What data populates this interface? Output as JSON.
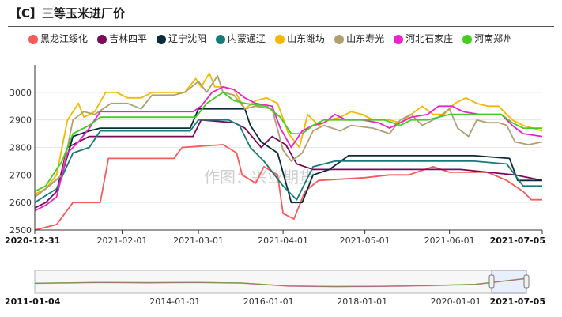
{
  "title": "【C】三等玉米进厂价",
  "watermark": "作图：兴业期货",
  "chart_data": {
    "type": "line",
    "title": "【C】三等玉米进厂价",
    "xlabel": "",
    "ylabel": "",
    "ylim": [
      2500,
      3100
    ],
    "y_ticks": [
      2500,
      2600,
      2700,
      2800,
      2900,
      3000
    ],
    "x_ticks": [
      "2020-12-31",
      "2021-02-01",
      "2021-03-01",
      "2021-04-01",
      "2021-05-01",
      "2021-06-01",
      "2021-07-05"
    ],
    "x_range": [
      "2020-12-31",
      "2021-07-05"
    ],
    "grid": "horizontal",
    "legend": "top-left",
    "series": [
      {
        "name": "黑龙江绥化",
        "color": "#f45b5b",
        "points": [
          [
            "2020-12-31",
            2500
          ],
          [
            "2021-01-08",
            2520
          ],
          [
            "2021-01-14",
            2600
          ],
          [
            "2021-01-24",
            2600
          ],
          [
            "2021-01-27",
            2760
          ],
          [
            "2021-02-20",
            2760
          ],
          [
            "2021-02-23",
            2800
          ],
          [
            "2021-03-10",
            2810
          ],
          [
            "2021-03-15",
            2780
          ],
          [
            "2021-03-17",
            2700
          ],
          [
            "2021-03-22",
            2670
          ],
          [
            "2021-03-25",
            2730
          ],
          [
            "2021-03-30",
            2700
          ],
          [
            "2021-04-01",
            2560
          ],
          [
            "2021-04-05",
            2540
          ],
          [
            "2021-04-09",
            2640
          ],
          [
            "2021-04-14",
            2680
          ],
          [
            "2021-05-01",
            2690
          ],
          [
            "2021-05-10",
            2700
          ],
          [
            "2021-05-17",
            2700
          ],
          [
            "2021-05-26",
            2730
          ],
          [
            "2021-06-01",
            2710
          ],
          [
            "2021-06-15",
            2710
          ],
          [
            "2021-06-22",
            2680
          ],
          [
            "2021-06-28",
            2640
          ],
          [
            "2021-07-01",
            2610
          ],
          [
            "2021-07-05",
            2610
          ]
        ]
      },
      {
        "name": "吉林四平",
        "color": "#7a0a5a",
        "points": [
          [
            "2020-12-31",
            2580
          ],
          [
            "2021-01-04",
            2600
          ],
          [
            "2021-01-08",
            2640
          ],
          [
            "2021-01-12",
            2800
          ],
          [
            "2021-01-16",
            2820
          ],
          [
            "2021-01-20",
            2840
          ],
          [
            "2021-02-27",
            2840
          ],
          [
            "2021-03-02",
            2900
          ],
          [
            "2021-03-14",
            2890
          ],
          [
            "2021-03-18",
            2870
          ],
          [
            "2021-03-24",
            2800
          ],
          [
            "2021-03-28",
            2840
          ],
          [
            "2021-04-02",
            2810
          ],
          [
            "2021-04-06",
            2740
          ],
          [
            "2021-04-12",
            2720
          ],
          [
            "2021-06-05",
            2720
          ],
          [
            "2021-06-25",
            2700
          ],
          [
            "2021-07-05",
            2680
          ]
        ]
      },
      {
        "name": "辽宁沈阳",
        "color": "#0b2a3a",
        "points": [
          [
            "2020-12-31",
            2620
          ],
          [
            "2021-01-04",
            2650
          ],
          [
            "2021-01-10",
            2700
          ],
          [
            "2021-01-14",
            2840
          ],
          [
            "2021-01-20",
            2860
          ],
          [
            "2021-01-24",
            2870
          ],
          [
            "2021-02-26",
            2870
          ],
          [
            "2021-03-01",
            2940
          ],
          [
            "2021-03-18",
            2940
          ],
          [
            "2021-03-20",
            2880
          ],
          [
            "2021-03-24",
            2820
          ],
          [
            "2021-03-30",
            2780
          ],
          [
            "2021-04-04",
            2600
          ],
          [
            "2021-04-08",
            2600
          ],
          [
            "2021-04-12",
            2700
          ],
          [
            "2021-04-18",
            2720
          ],
          [
            "2021-04-25",
            2770
          ],
          [
            "2021-06-10",
            2770
          ],
          [
            "2021-06-23",
            2760
          ],
          [
            "2021-06-26",
            2680
          ],
          [
            "2021-07-05",
            2680
          ]
        ]
      },
      {
        "name": "内蒙通辽",
        "color": "#167a7a",
        "points": [
          [
            "2020-12-31",
            2600
          ],
          [
            "2021-01-08",
            2650
          ],
          [
            "2021-01-14",
            2780
          ],
          [
            "2021-01-20",
            2800
          ],
          [
            "2021-01-24",
            2860
          ],
          [
            "2021-02-26",
            2860
          ],
          [
            "2021-03-01",
            2900
          ],
          [
            "2021-03-12",
            2900
          ],
          [
            "2021-03-16",
            2880
          ],
          [
            "2021-03-20",
            2800
          ],
          [
            "2021-03-25",
            2750
          ],
          [
            "2021-04-01",
            2660
          ],
          [
            "2021-04-06",
            2610
          ],
          [
            "2021-04-12",
            2730
          ],
          [
            "2021-04-20",
            2750
          ],
          [
            "2021-06-10",
            2750
          ],
          [
            "2021-06-22",
            2740
          ],
          [
            "2021-06-28",
            2660
          ],
          [
            "2021-07-05",
            2660
          ]
        ]
      },
      {
        "name": "山东潍坊",
        "color": "#f5b800",
        "points": [
          [
            "2020-12-31",
            2630
          ],
          [
            "2021-01-04",
            2650
          ],
          [
            "2021-01-08",
            2700
          ],
          [
            "2021-01-12",
            2900
          ],
          [
            "2021-01-16",
            2960
          ],
          [
            "2021-01-18",
            2910
          ],
          [
            "2021-01-22",
            2930
          ],
          [
            "2021-01-26",
            3000
          ],
          [
            "2021-01-30",
            3000
          ],
          [
            "2021-02-03",
            2980
          ],
          [
            "2021-02-08",
            2980
          ],
          [
            "2021-02-12",
            3000
          ],
          [
            "2021-02-20",
            3000
          ],
          [
            "2021-02-24",
            3000
          ],
          [
            "2021-02-28",
            3050
          ],
          [
            "2021-03-02",
            3020
          ],
          [
            "2021-03-05",
            3070
          ],
          [
            "2021-03-07",
            3020
          ],
          [
            "2021-03-10",
            3020
          ],
          [
            "2021-03-14",
            3010
          ],
          [
            "2021-03-18",
            2940
          ],
          [
            "2021-03-22",
            2970
          ],
          [
            "2021-03-26",
            2980
          ],
          [
            "2021-03-30",
            2960
          ],
          [
            "2021-04-03",
            2850
          ],
          [
            "2021-04-07",
            2800
          ],
          [
            "2021-04-10",
            2920
          ],
          [
            "2021-04-14",
            2880
          ],
          [
            "2021-04-18",
            2900
          ],
          [
            "2021-04-22",
            2910
          ],
          [
            "2021-04-26",
            2930
          ],
          [
            "2021-04-30",
            2920
          ],
          [
            "2021-05-04",
            2900
          ],
          [
            "2021-05-10",
            2900
          ],
          [
            "2021-05-14",
            2890
          ],
          [
            "2021-05-18",
            2920
          ],
          [
            "2021-05-22",
            2950
          ],
          [
            "2021-05-26",
            2920
          ],
          [
            "2021-05-30",
            2920
          ],
          [
            "2021-06-03",
            2960
          ],
          [
            "2021-06-07",
            2980
          ],
          [
            "2021-06-11",
            2960
          ],
          [
            "2021-06-15",
            2950
          ],
          [
            "2021-06-19",
            2950
          ],
          [
            "2021-06-24",
            2900
          ],
          [
            "2021-06-28",
            2880
          ],
          [
            "2021-07-05",
            2860
          ]
        ]
      },
      {
        "name": "山东寿光",
        "color": "#b0a070",
        "points": [
          [
            "2020-12-31",
            2620
          ],
          [
            "2021-01-04",
            2650
          ],
          [
            "2021-01-10",
            2700
          ],
          [
            "2021-01-14",
            2900
          ],
          [
            "2021-01-18",
            2930
          ],
          [
            "2021-01-22",
            2920
          ],
          [
            "2021-01-28",
            2960
          ],
          [
            "2021-02-03",
            2960
          ],
          [
            "2021-02-08",
            2940
          ],
          [
            "2021-02-12",
            2990
          ],
          [
            "2021-02-20",
            2990
          ],
          [
            "2021-02-24",
            3000
          ],
          [
            "2021-03-01",
            3040
          ],
          [
            "2021-03-04",
            3000
          ],
          [
            "2021-03-08",
            3060
          ],
          [
            "2021-03-10",
            3000
          ],
          [
            "2021-03-14",
            2990
          ],
          [
            "2021-03-18",
            2940
          ],
          [
            "2021-03-22",
            2950
          ],
          [
            "2021-03-28",
            2940
          ],
          [
            "2021-04-01",
            2790
          ],
          [
            "2021-04-04",
            2750
          ],
          [
            "2021-04-08",
            2780
          ],
          [
            "2021-04-12",
            2860
          ],
          [
            "2021-04-16",
            2880
          ],
          [
            "2021-04-22",
            2860
          ],
          [
            "2021-04-26",
            2880
          ],
          [
            "2021-05-04",
            2870
          ],
          [
            "2021-05-10",
            2850
          ],
          [
            "2021-05-14",
            2900
          ],
          [
            "2021-05-18",
            2920
          ],
          [
            "2021-05-22",
            2880
          ],
          [
            "2021-05-28",
            2910
          ],
          [
            "2021-06-01",
            2940
          ],
          [
            "2021-06-04",
            2870
          ],
          [
            "2021-06-08",
            2840
          ],
          [
            "2021-06-11",
            2900
          ],
          [
            "2021-06-15",
            2890
          ],
          [
            "2021-06-19",
            2890
          ],
          [
            "2021-06-22",
            2880
          ],
          [
            "2021-06-25",
            2820
          ],
          [
            "2021-06-30",
            2810
          ],
          [
            "2021-07-05",
            2820
          ]
        ]
      },
      {
        "name": "河北石家庄",
        "color": "#ee22cc",
        "points": [
          [
            "2020-12-31",
            2570
          ],
          [
            "2021-01-04",
            2590
          ],
          [
            "2021-01-08",
            2620
          ],
          [
            "2021-01-12",
            2780
          ],
          [
            "2021-01-16",
            2820
          ],
          [
            "2021-01-20",
            2870
          ],
          [
            "2021-01-24",
            2930
          ],
          [
            "2021-02-27",
            2930
          ],
          [
            "2021-03-02",
            2950
          ],
          [
            "2021-03-06",
            3000
          ],
          [
            "2021-03-10",
            3020
          ],
          [
            "2021-03-14",
            3010
          ],
          [
            "2021-03-18",
            2980
          ],
          [
            "2021-03-22",
            2960
          ],
          [
            "2021-03-28",
            2950
          ],
          [
            "2021-03-31",
            2870
          ],
          [
            "2021-04-04",
            2800
          ],
          [
            "2021-04-08",
            2860
          ],
          [
            "2021-04-12",
            2880
          ],
          [
            "2021-04-16",
            2890
          ],
          [
            "2021-04-20",
            2920
          ],
          [
            "2021-04-24",
            2900
          ],
          [
            "2021-04-30",
            2900
          ],
          [
            "2021-05-06",
            2890
          ],
          [
            "2021-05-10",
            2870
          ],
          [
            "2021-05-14",
            2890
          ],
          [
            "2021-05-18",
            2910
          ],
          [
            "2021-05-24",
            2920
          ],
          [
            "2021-05-28",
            2950
          ],
          [
            "2021-06-02",
            2950
          ],
          [
            "2021-06-06",
            2930
          ],
          [
            "2021-06-12",
            2920
          ],
          [
            "2021-06-20",
            2920
          ],
          [
            "2021-06-24",
            2880
          ],
          [
            "2021-06-28",
            2850
          ],
          [
            "2021-07-05",
            2840
          ]
        ]
      },
      {
        "name": "河南郑州",
        "color": "#44cc22",
        "points": [
          [
            "2020-12-31",
            2640
          ],
          [
            "2021-01-04",
            2660
          ],
          [
            "2021-01-10",
            2750
          ],
          [
            "2021-01-14",
            2850
          ],
          [
            "2021-01-20",
            2880
          ],
          [
            "2021-01-24",
            2910
          ],
          [
            "2021-02-28",
            2910
          ],
          [
            "2021-03-04",
            2960
          ],
          [
            "2021-03-10",
            3000
          ],
          [
            "2021-03-14",
            2970
          ],
          [
            "2021-03-18",
            2960
          ],
          [
            "2021-03-26",
            2950
          ],
          [
            "2021-03-31",
            2910
          ],
          [
            "2021-04-04",
            2850
          ],
          [
            "2021-04-08",
            2850
          ],
          [
            "2021-04-12",
            2880
          ],
          [
            "2021-04-16",
            2900
          ],
          [
            "2021-05-08",
            2900
          ],
          [
            "2021-05-14",
            2880
          ],
          [
            "2021-05-18",
            2900
          ],
          [
            "2021-05-24",
            2900
          ],
          [
            "2021-06-01",
            2920
          ],
          [
            "2021-06-20",
            2920
          ],
          [
            "2021-06-24",
            2890
          ],
          [
            "2021-06-28",
            2870
          ],
          [
            "2021-07-05",
            2870
          ]
        ]
      }
    ],
    "navigator": {
      "x_range": [
        "2011-01-04",
        "2021-07-05"
      ],
      "x_ticks": [
        "2011-01-04",
        "2014-01-01",
        "2016-01-01",
        "2018-01-01",
        "2020-01-01",
        "2021-07-05"
      ]
    }
  }
}
